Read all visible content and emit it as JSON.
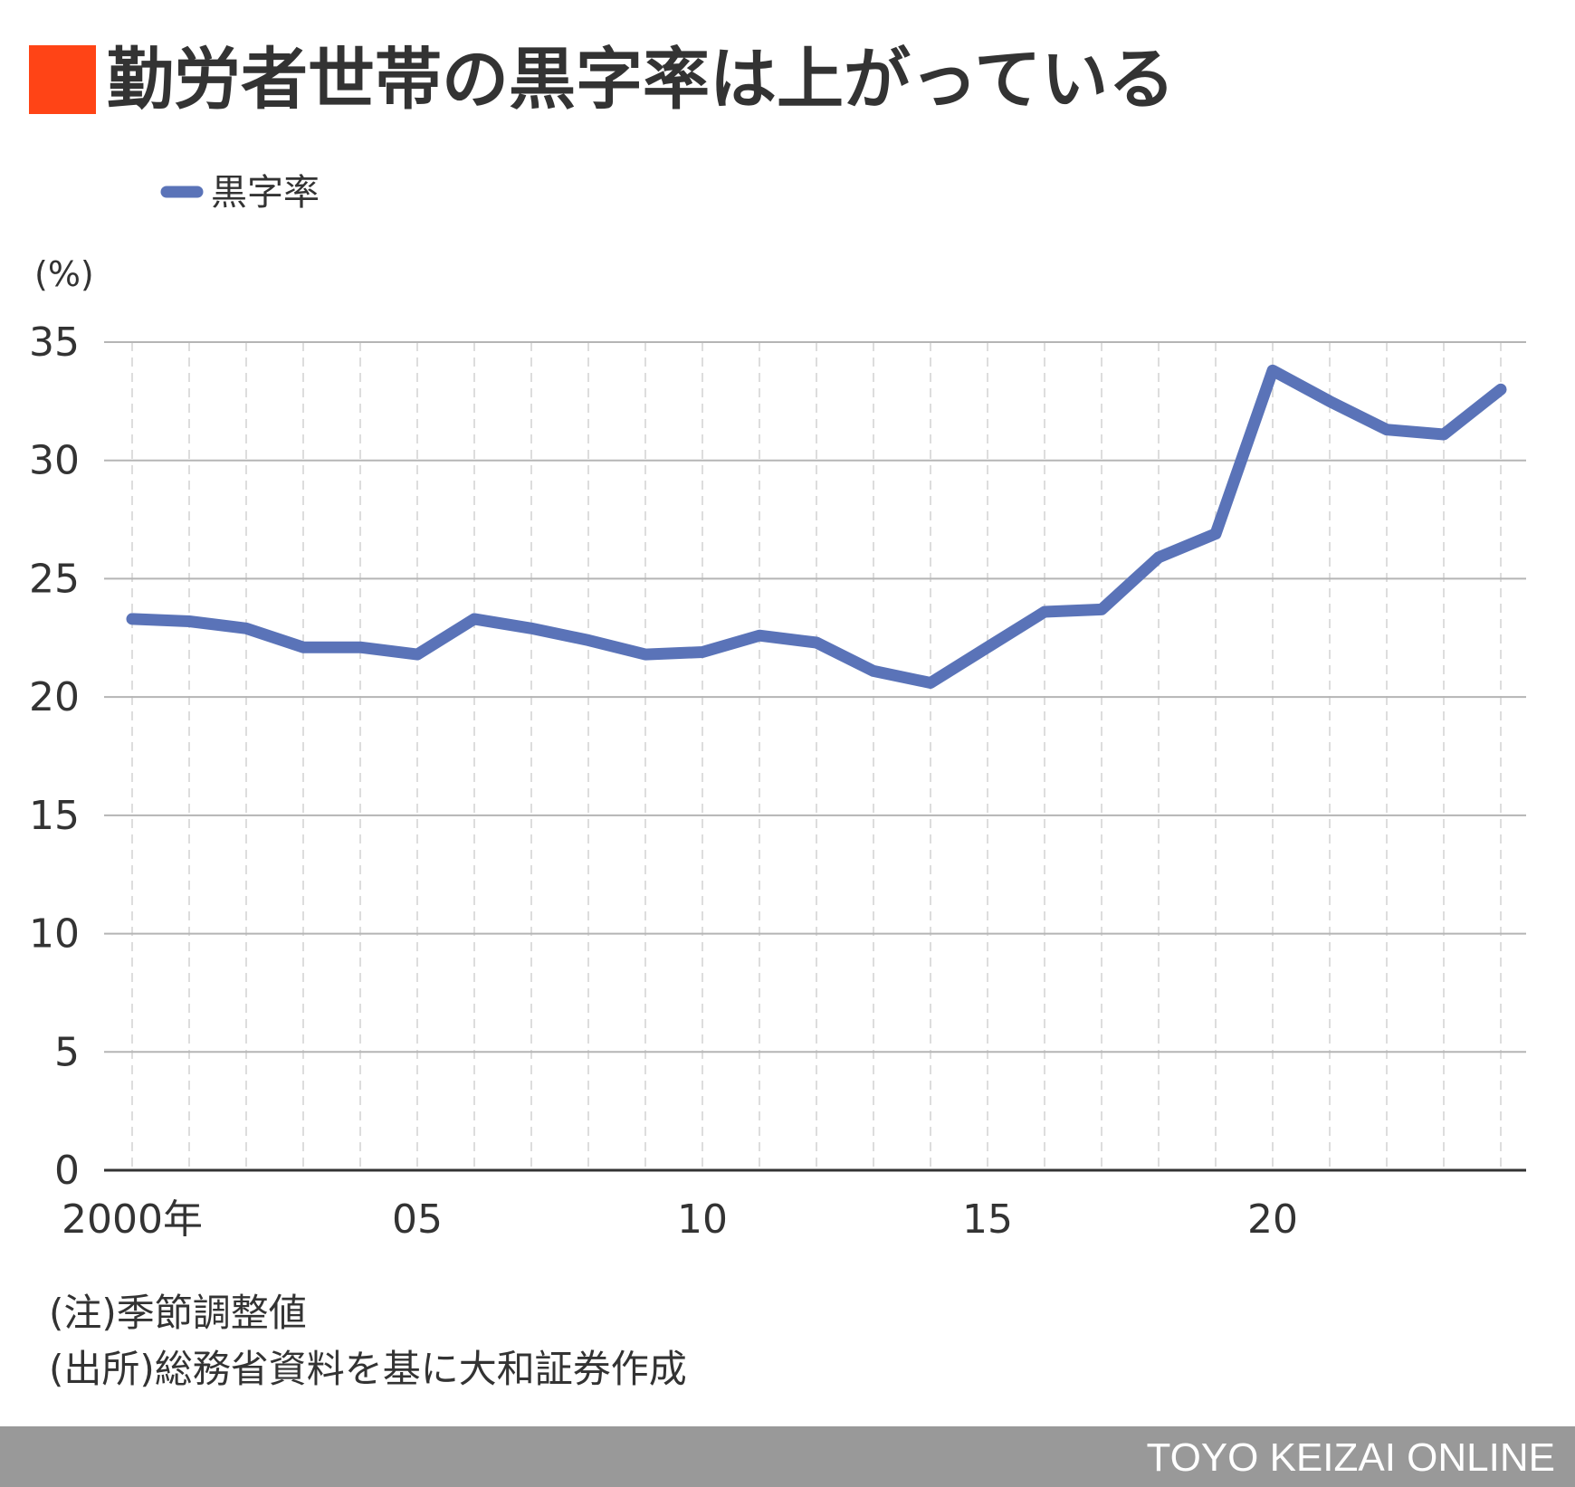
{
  "title": "勤労者世帯の黒字率は上がっている",
  "colors": {
    "title_marker": "#ff4416",
    "series_line": "#5a73b8",
    "grid_major": "#b5b5b5",
    "grid_minor": "#dddddd",
    "axis": "#333333",
    "footer_bg": "#999999",
    "footer_text": "#ffffff"
  },
  "notes": {
    "note1": "(注)季節調整値",
    "note2": "(出所)総務省資料を基に大和証券作成"
  },
  "footer": {
    "brand": "TOYO KEIZAI ONLINE"
  },
  "chart_data": {
    "type": "line",
    "title": "勤労者世帯の黒字率は上がっている",
    "unit_label": "(%)",
    "legend": {
      "position": "top-left",
      "entries": [
        "黒字率"
      ]
    },
    "x": [
      2000,
      2001,
      2002,
      2003,
      2004,
      2005,
      2006,
      2007,
      2008,
      2009,
      2010,
      2011,
      2012,
      2013,
      2014,
      2015,
      2016,
      2017,
      2018,
      2019,
      2020,
      2021,
      2022,
      2023,
      2024
    ],
    "x_tick_values": [
      2000,
      2005,
      2010,
      2015,
      2020
    ],
    "x_tick_labels": [
      "2000年",
      "05",
      "10",
      "15",
      "20"
    ],
    "series": [
      {
        "name": "黒字率",
        "values": [
          23.3,
          23.2,
          22.9,
          22.1,
          22.1,
          21.8,
          23.3,
          22.9,
          22.4,
          21.8,
          21.9,
          22.6,
          22.3,
          21.1,
          20.6,
          22.1,
          23.6,
          23.7,
          25.9,
          26.9,
          33.8,
          32.5,
          31.3,
          31.1,
          33.0
        ]
      }
    ],
    "y_ticks": [
      0,
      5,
      10,
      15,
      20,
      25,
      30,
      35
    ],
    "ylim": [
      0,
      35
    ],
    "xlim": [
      2000,
      2024
    ],
    "grid": {
      "horizontal": true,
      "vertical_dashed": true
    }
  }
}
